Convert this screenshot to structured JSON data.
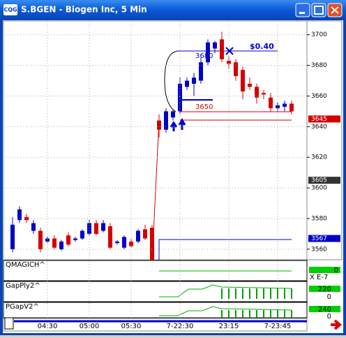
{
  "window": {
    "title": "S.BGEN - Biogen Inc, 5 Min",
    "icon": "CQG"
  },
  "chart_data": {
    "type": "candlestick",
    "categories": [
      null,
      null,
      null,
      null,
      null,
      "04:30",
      null,
      null,
      null,
      null,
      null,
      "05:00",
      null,
      null,
      null,
      null,
      null,
      "05:30",
      null,
      null,
      null,
      null,
      null,
      null,
      "7-22:30",
      null,
      null,
      null,
      null,
      null,
      null,
      "23:15",
      null,
      null,
      null,
      null,
      null,
      null,
      "7-23:45",
      null,
      null
    ],
    "open": [
      3560,
      3579,
      3581,
      3572,
      3572,
      3565,
      3567,
      3560,
      3569,
      3566,
      3567,
      3570,
      3577,
      3572,
      3575,
      3564,
      3561,
      3565,
      3565,
      3573,
      3574,
      3644,
      3638,
      3646,
      3650,
      3666,
      3668,
      3670,
      3682,
      3691,
      3697,
      3683,
      3682,
      3677,
      3668,
      3666,
      3662,
      3659,
      3652,
      3653,
      3655
    ],
    "high": [
      3581,
      3588,
      3583,
      3579,
      3574,
      3568,
      3569,
      3566,
      3571,
      3568,
      3573,
      3579,
      3579,
      3579,
      3577,
      3566,
      3569,
      3567,
      3573,
      3576,
      3576,
      3648,
      3652,
      3651,
      3672,
      3672,
      3675,
      3685,
      3697,
      3696,
      3702,
      3686,
      3684,
      3679,
      3672,
      3668,
      3664,
      3662,
      3656,
      3657,
      3657
    ],
    "low": [
      3558,
      3577,
      3577,
      3570,
      3558,
      3564,
      3560,
      3559,
      3562,
      3565,
      3566,
      3569,
      3569,
      3571,
      3560,
      3563,
      3560,
      3561,
      3564,
      3566,
      3550,
      3633,
      3636,
      3644,
      3648,
      3664,
      3660,
      3668,
      3680,
      3688,
      3682,
      3678,
      3670,
      3658,
      3664,
      3655,
      3658,
      3650,
      3650,
      3650,
      3648
    ],
    "close": [
      3576,
      3586,
      3579,
      3577,
      3560,
      3567,
      3561,
      3565,
      3563,
      3567,
      3572,
      3577,
      3570,
      3577,
      3561,
      3565,
      3568,
      3562,
      3572,
      3567,
      3552,
      3638,
      3650,
      3650,
      3668,
      3670,
      3672,
      3682,
      3695,
      3695,
      3684,
      3681,
      3673,
      3663,
      3666,
      3659,
      3661,
      3652,
      3654,
      3655,
      3650
    ],
    "up_color": "#0000c8",
    "down_color": "#d40000",
    "ylim": [
      3554,
      3709
    ],
    "yticks": [
      3560,
      3580,
      3600,
      3620,
      3640,
      3660,
      3680,
      3700
    ],
    "price_labels": [
      3645,
      3605,
      3567
    ],
    "annotations": [
      "$0.40",
      "3680",
      "3650"
    ]
  },
  "panels": [
    {
      "name": "QMAGICH^",
      "labels": [
        "0"
      ]
    },
    {
      "name": "GapPly2^",
      "labels": [
        "220",
        "0"
      ]
    },
    {
      "name": "PGapV2^",
      "labels": [
        "240",
        "0"
      ]
    }
  ],
  "scale_note": "X E-7"
}
